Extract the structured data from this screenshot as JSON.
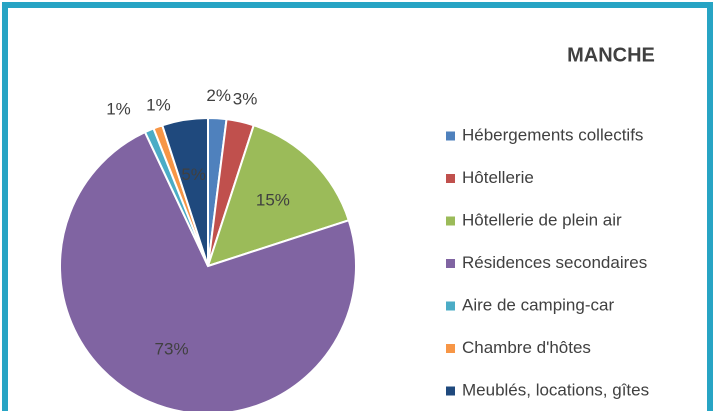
{
  "chart_data": {
    "type": "pie",
    "title": "MANCHE",
    "categories": [
      "Hébergements collectifs",
      "Hôtellerie",
      "Hôtellerie de plein air",
      "Résidences secondaires",
      "Aire de camping-car",
      "Chambre d'hôtes",
      "Meublés, locations, gîtes"
    ],
    "values": [
      2,
      3,
      15,
      73,
      1,
      1,
      5
    ],
    "value_labels": [
      "2%",
      "3%",
      "15%",
      "73%",
      "1%",
      "1%",
      "5%"
    ],
    "colors": [
      "#4f81bd",
      "#c0504d",
      "#9bbb59",
      "#8064a2",
      "#4bacc6",
      "#f79646",
      "#1f497d"
    ],
    "legend": "right"
  }
}
